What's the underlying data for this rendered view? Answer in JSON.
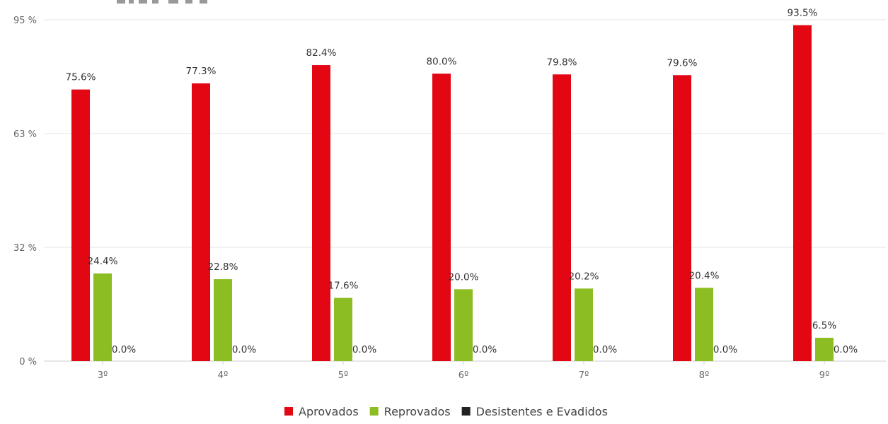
{
  "chart_data": {
    "type": "bar",
    "categories": [
      "3º",
      "4º",
      "5º",
      "6º",
      "7º",
      "8º",
      "9º"
    ],
    "series": [
      {
        "name": "Aprovados",
        "color": "#e30613",
        "values": [
          75.6,
          77.3,
          82.4,
          80.0,
          79.8,
          79.6,
          93.5
        ]
      },
      {
        "name": "Reprovados",
        "color": "#8cbd23",
        "values": [
          24.4,
          22.8,
          17.6,
          20.0,
          20.2,
          20.4,
          6.5
        ]
      },
      {
        "name": "Desistentes e Evadidos",
        "color": "#222222",
        "values": [
          0.0,
          0.0,
          0.0,
          0.0,
          0.0,
          0.0,
          0.0
        ]
      }
    ],
    "data_labels": [
      [
        "75.6%",
        "77.3%",
        "82.4%",
        "80.0%",
        "79.8%",
        "79.6%",
        "93.5%"
      ],
      [
        "24.4%",
        "22.8%",
        "17.6%",
        "20.0%",
        "20.2%",
        "20.4%",
        "6.5%"
      ],
      [
        "0.0%",
        "0.0%",
        "0.0%",
        "0.0%",
        "0.0%",
        "0.0%",
        "0.0%"
      ]
    ],
    "y_ticks": [
      {
        "value": 0,
        "label": "0 %"
      },
      {
        "value": 31.67,
        "label": "32 %"
      },
      {
        "value": 63.33,
        "label": "63 %"
      },
      {
        "value": 95,
        "label": "95 %"
      }
    ],
    "ylim": [
      0,
      95
    ],
    "grid": true,
    "legend_position": "bottom-center"
  }
}
